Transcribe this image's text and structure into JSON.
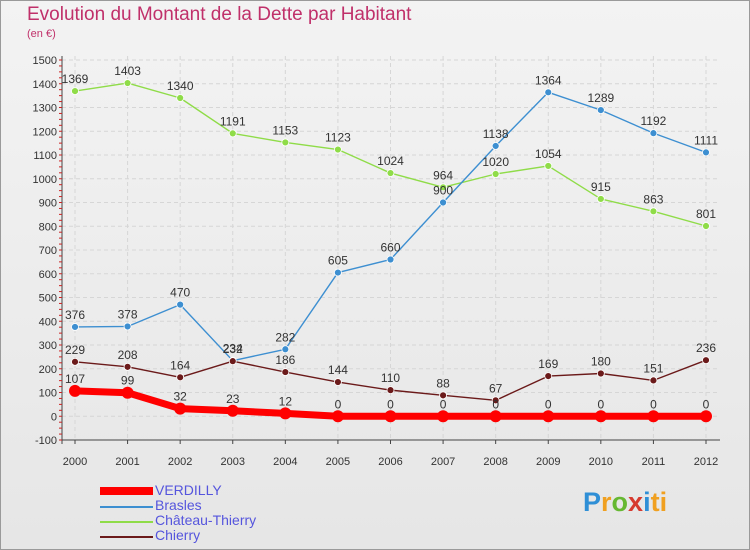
{
  "chart_data": {
    "type": "line",
    "title": "Evolution du Montant de la Dette par Habitant",
    "subtitle": "(en €)",
    "x": [
      "2000",
      "2001",
      "2002",
      "2003",
      "2004",
      "2005",
      "2006",
      "2007",
      "2008",
      "2009",
      "2010",
      "2011",
      "2012"
    ],
    "yticks": [
      "-100",
      "0",
      "100",
      "200",
      "300",
      "400",
      "500",
      "600",
      "700",
      "800",
      "900",
      "1000",
      "1100",
      "1200",
      "1300",
      "1400",
      "1500"
    ],
    "ylim": [
      -100,
      1500
    ],
    "grid": true,
    "series": [
      {
        "name": "VERDILLY",
        "color": "#ff0000",
        "values": [
          107,
          99,
          32,
          23,
          12,
          0,
          0,
          0,
          0,
          0,
          0,
          0,
          0
        ],
        "labels": [
          "107",
          "99",
          "32",
          "23",
          "12",
          "0",
          "0",
          "0",
          "0",
          "0",
          "0",
          "0",
          "0"
        ]
      },
      {
        "name": "Brasles",
        "color": "#3d8fd1",
        "values": [
          376,
          378,
          470,
          234,
          282,
          605,
          660,
          900,
          1138,
          1364,
          1289,
          1192,
          1111
        ],
        "labels": [
          "376",
          "378",
          "470",
          "234",
          "282",
          "605",
          "660",
          "900",
          "1138",
          "1364",
          "1289",
          "1192",
          "1111"
        ]
      },
      {
        "name": "Château-Thierry",
        "color": "#8fdc48",
        "values": [
          1369,
          1403,
          1340,
          1191,
          1153,
          1123,
          1024,
          964,
          1020,
          1054,
          915,
          863,
          801
        ],
        "labels": [
          "1369",
          "1403",
          "1340",
          "1191",
          "1153",
          "1123",
          "1024",
          "964",
          "1020",
          "1054",
          "915",
          "863",
          "801"
        ]
      },
      {
        "name": "Chierry",
        "color": "#6b1a1a",
        "values": [
          229,
          208,
          164,
          232,
          186,
          144,
          110,
          88,
          67,
          169,
          180,
          151,
          236
        ],
        "labels": [
          "229",
          "208",
          "164",
          "232",
          "186",
          "144",
          "110",
          "88",
          "67",
          "169",
          "180",
          "151",
          "236"
        ]
      }
    ]
  },
  "legend": {
    "items": [
      {
        "label": "VERDILLY",
        "color": "#ff0000"
      },
      {
        "label": "Brasles",
        "color": "#3d8fd1"
      },
      {
        "label": "Château-Thierry",
        "color": "#8fdc48"
      },
      {
        "label": "Chierry",
        "color": "#6b1a1a"
      }
    ]
  },
  "logo": {
    "p": "P",
    "r": "r",
    "o": "o",
    "x": "x",
    "i": "i",
    "t": "ti"
  }
}
